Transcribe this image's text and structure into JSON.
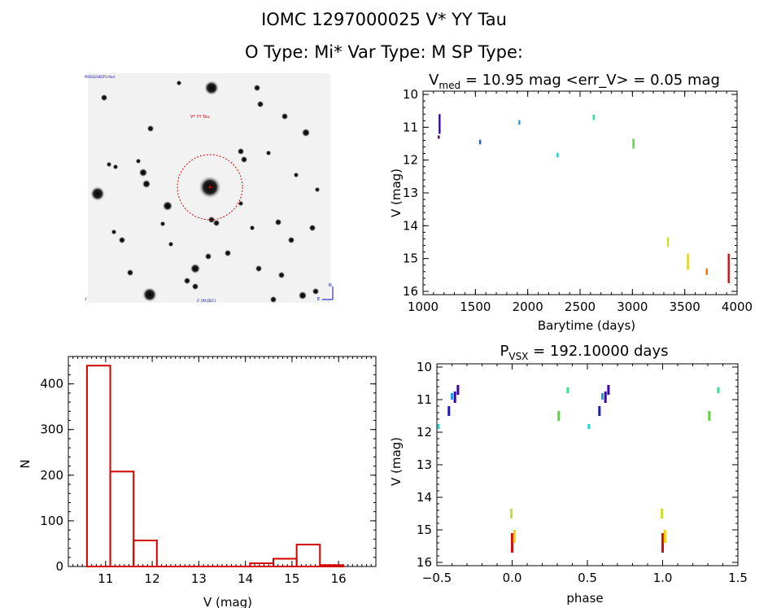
{
  "header": {
    "title_line1": "IOMC 1297000025    V* YY Tau",
    "title_line2": "O Type: Mi*  Var Type: M   SP Type:"
  },
  "image_panel": {
    "target_label": "V* YY Tau",
    "corner_labels": [
      "POSS2/UKSTU Red",
      "1'",
      "2' [RA,DEC]",
      "N",
      "E"
    ]
  },
  "chart_data": [
    {
      "type": "scatter",
      "title": "V_med = 10.95 mag <err_V> = 0.05 mag",
      "title_parts": {
        "prefix": "V",
        "sub": "med",
        "rest": " = 10.95 mag <err_V> = 0.05 mag"
      },
      "xlabel": "Barytime (days)",
      "ylabel": "V (mag)",
      "xlim": [
        1000,
        4000
      ],
      "ylim": [
        16.1,
        9.9
      ],
      "xticks": [
        1000,
        1500,
        2000,
        2500,
        3000,
        3500,
        4000
      ],
      "yticks": [
        10,
        11,
        12,
        13,
        14,
        15,
        16
      ],
      "points": [
        {
          "x": 1158,
          "y": 10.6,
          "y2": 11.2,
          "color": "#3a00b0"
        },
        {
          "x": 1150,
          "y": 11.25,
          "y2": 11.35,
          "color": "#5a0060"
        },
        {
          "x": 1545,
          "y": 11.38,
          "y2": 11.52,
          "color": "#1f5fd6"
        },
        {
          "x": 1920,
          "y": 10.78,
          "y2": 10.92,
          "color": "#22a0e0"
        },
        {
          "x": 2285,
          "y": 11.78,
          "y2": 11.92,
          "color": "#20d0d0"
        },
        {
          "x": 2630,
          "y": 10.62,
          "y2": 10.78,
          "color": "#30e090"
        },
        {
          "x": 3010,
          "y": 11.35,
          "y2": 11.65,
          "color": "#60d040"
        },
        {
          "x": 3340,
          "y": 14.35,
          "y2": 14.65,
          "color": "#c8e030"
        },
        {
          "x": 3530,
          "y": 14.85,
          "y2": 15.35,
          "color": "#f0d000"
        },
        {
          "x": 3710,
          "y": 15.3,
          "y2": 15.5,
          "color": "#f07000"
        },
        {
          "x": 3920,
          "y": 14.85,
          "y2": 15.75,
          "color": "#d01010"
        }
      ]
    },
    {
      "type": "bar",
      "title": "",
      "xlabel": "V (mag)",
      "ylabel": "N",
      "xlim": [
        10.2,
        16.8
      ],
      "ylim": [
        0,
        460
      ],
      "xticks": [
        11,
        12,
        13,
        14,
        15,
        16
      ],
      "yticks": [
        0,
        100,
        200,
        300,
        400
      ],
      "bin_edges": [
        10.6,
        11.1,
        11.6,
        12.1,
        12.6,
        13.1,
        13.6,
        14.1,
        14.6,
        15.1,
        15.6,
        16.1
      ],
      "values": [
        440,
        208,
        57,
        0,
        0,
        0,
        0,
        7,
        17,
        48,
        3
      ],
      "color": "#d40000"
    },
    {
      "type": "scatter",
      "title": "P_VSX = 192.10000 days",
      "title_parts": {
        "prefix": "P",
        "sub": "VSX",
        "rest": " = 192.10000 days"
      },
      "xlabel": "phase",
      "ylabel": "V (mag)",
      "xlim": [
        -0.5,
        1.5
      ],
      "ylim": [
        16.1,
        9.9
      ],
      "xticks": [
        -0.5,
        0.0,
        0.5,
        1.0,
        1.5
      ],
      "xtick_labels": [
        "−0.5",
        "0.0",
        "0.5",
        "1.0",
        "1.5"
      ],
      "yticks": [
        10,
        11,
        12,
        13,
        14,
        15,
        16
      ],
      "points": [
        {
          "x": -0.49,
          "y": 11.75,
          "y2": 11.9,
          "color": "#20d0d0"
        },
        {
          "x": -0.42,
          "y": 11.2,
          "y2": 11.5,
          "color": "#1a1ab0"
        },
        {
          "x": -0.4,
          "y": 10.8,
          "y2": 11.0,
          "color": "#22a0e0"
        },
        {
          "x": -0.38,
          "y": 10.75,
          "y2": 11.1,
          "color": "#3a00b0"
        },
        {
          "x": -0.36,
          "y": 10.55,
          "y2": 10.85,
          "color": "#3a00b0"
        },
        {
          "x": -0.005,
          "y": 14.35,
          "y2": 14.65,
          "color": "#c8e030"
        },
        {
          "x": 0.0,
          "y": 15.1,
          "y2": 15.7,
          "color": "#d01010"
        },
        {
          "x": 0.015,
          "y": 15.0,
          "y2": 15.4,
          "color": "#f0d000"
        },
        {
          "x": 0.31,
          "y": 11.35,
          "y2": 11.65,
          "color": "#60d040"
        },
        {
          "x": 0.37,
          "y": 10.62,
          "y2": 10.8,
          "color": "#30e090"
        },
        {
          "x": 0.51,
          "y": 11.75,
          "y2": 11.9,
          "color": "#20d0d0"
        },
        {
          "x": 0.58,
          "y": 11.2,
          "y2": 11.5,
          "color": "#1a1ab0"
        },
        {
          "x": 0.6,
          "y": 10.8,
          "y2": 11.0,
          "color": "#22a0e0"
        },
        {
          "x": 0.62,
          "y": 10.75,
          "y2": 11.1,
          "color": "#3a00b0"
        },
        {
          "x": 0.64,
          "y": 10.55,
          "y2": 10.85,
          "color": "#3a00b0"
        },
        {
          "x": 0.995,
          "y": 14.35,
          "y2": 14.65,
          "color": "#c8e030"
        },
        {
          "x": 1.0,
          "y": 15.1,
          "y2": 15.7,
          "color": "#d01010"
        },
        {
          "x": 1.015,
          "y": 15.0,
          "y2": 15.4,
          "color": "#f0d000"
        },
        {
          "x": 1.31,
          "y": 11.35,
          "y2": 11.65,
          "color": "#60d040"
        },
        {
          "x": 1.37,
          "y": 10.62,
          "y2": 10.8,
          "color": "#30e090"
        }
      ]
    }
  ]
}
